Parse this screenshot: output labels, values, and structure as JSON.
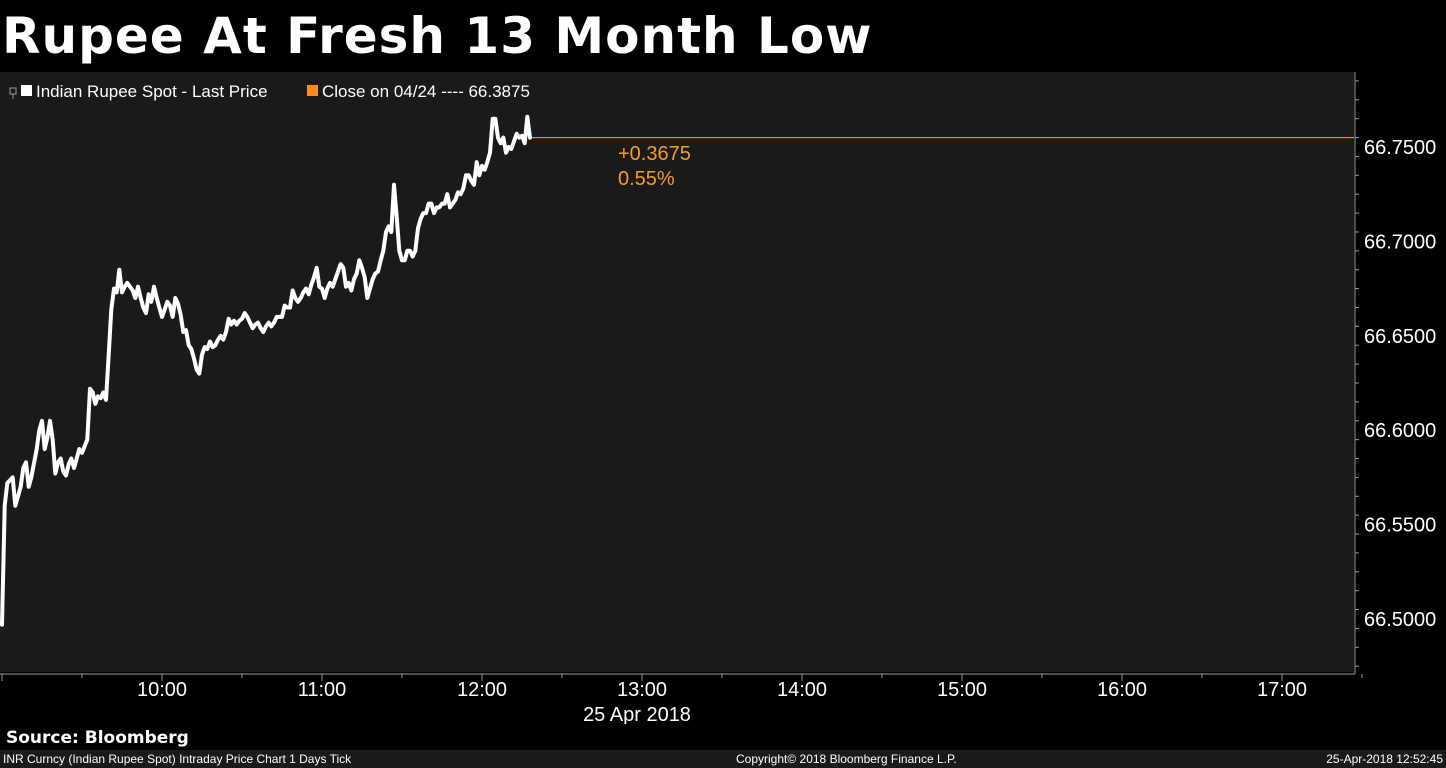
{
  "title": "Rupee At Fresh 13 Month Low",
  "legend": {
    "series_label": "Indian Rupee Spot - Last Price",
    "close_label": "Close on 04/24 ---- 66.3875"
  },
  "change": {
    "absolute": "+0.3675",
    "percent": "0.55%"
  },
  "colors": {
    "background": "#000000",
    "plot_background": "#1a1a1a",
    "series": "#ffffff",
    "close_line": "#ff8c1a",
    "change_text": "#f39c2e"
  },
  "chart_data": {
    "type": "line",
    "ylim": [
      66.475,
      66.785
    ],
    "y_ticks": [
      66.5,
      66.55,
      66.6,
      66.65,
      66.7,
      66.75
    ],
    "y_tick_labels": [
      "66.5000",
      "66.5500",
      "66.6000",
      "66.6500",
      "66.7000",
      "66.7500"
    ],
    "xlim": [
      "09:00",
      "17:30"
    ],
    "x_ticks": [
      "10:00",
      "11:00",
      "12:00",
      "13:00",
      "14:00",
      "15:00",
      "16:00",
      "17:00"
    ],
    "x_date_label": "25 Apr 2018",
    "reference_line_value": 66.755,
    "series": [
      {
        "name": "Indian Rupee Spot - Last Price",
        "points": [
          [
            "09:00",
            66.497
          ],
          [
            "09:01",
            66.56
          ],
          [
            "09:02",
            66.572
          ],
          [
            "09:04",
            66.575
          ],
          [
            "09:05",
            66.56
          ],
          [
            "09:07",
            66.57
          ],
          [
            "09:08",
            66.58
          ],
          [
            "09:09",
            66.583
          ],
          [
            "09:10",
            66.57
          ],
          [
            "09:11",
            66.575
          ],
          [
            "09:13",
            66.59
          ],
          [
            "09:14",
            66.6
          ],
          [
            "09:15",
            66.605
          ],
          [
            "09:16",
            66.59
          ],
          [
            "09:17",
            66.596
          ],
          [
            "09:18",
            66.605
          ],
          [
            "09:19",
            66.595
          ],
          [
            "09:20",
            66.577
          ],
          [
            "09:21",
            66.583
          ],
          [
            "09:22",
            66.585
          ],
          [
            "09:23",
            66.578
          ],
          [
            "09:24",
            66.576
          ],
          [
            "09:25",
            66.582
          ],
          [
            "09:26",
            66.585
          ],
          [
            "09:27",
            66.58
          ],
          [
            "09:28",
            66.585
          ],
          [
            "09:29",
            66.59
          ],
          [
            "09:30",
            66.588
          ],
          [
            "09:32",
            66.595
          ],
          [
            "09:33",
            66.622
          ],
          [
            "09:34",
            66.62
          ],
          [
            "09:35",
            66.614
          ],
          [
            "09:36",
            66.618
          ],
          [
            "09:37",
            66.617
          ],
          [
            "09:38",
            66.62
          ],
          [
            "09:39",
            66.616
          ],
          [
            "09:40",
            66.64
          ],
          [
            "09:41",
            66.664
          ],
          [
            "09:42",
            66.675
          ],
          [
            "09:43",
            66.673
          ],
          [
            "09:44",
            66.685
          ],
          [
            "09:45",
            66.673
          ],
          [
            "09:46",
            66.676
          ],
          [
            "09:47",
            66.678
          ],
          [
            "09:49",
            66.674
          ],
          [
            "09:50",
            66.67
          ],
          [
            "09:51",
            66.676
          ],
          [
            "09:52",
            66.67
          ],
          [
            "09:53",
            66.665
          ],
          [
            "09:54",
            66.662
          ],
          [
            "09:55",
            66.672
          ],
          [
            "09:56",
            66.668
          ],
          [
            "09:57",
            66.676
          ],
          [
            "09:58",
            66.67
          ],
          [
            "09:59",
            66.665
          ],
          [
            "10:00",
            66.66
          ],
          [
            "10:01",
            66.664
          ],
          [
            "10:02",
            66.668
          ],
          [
            "10:03",
            66.666
          ],
          [
            "10:04",
            66.66
          ],
          [
            "10:05",
            66.67
          ],
          [
            "10:06",
            66.667
          ],
          [
            "10:07",
            66.661
          ],
          [
            "10:08",
            66.652
          ],
          [
            "10:09",
            66.653
          ],
          [
            "10:10",
            66.645
          ],
          [
            "10:11",
            66.643
          ],
          [
            "10:12",
            66.638
          ],
          [
            "10:13",
            66.632
          ],
          [
            "10:14",
            66.63
          ],
          [
            "10:15",
            66.64
          ],
          [
            "10:16",
            66.644
          ],
          [
            "10:17",
            66.643
          ],
          [
            "10:18",
            66.647
          ],
          [
            "10:19",
            66.644
          ],
          [
            "10:20",
            66.645
          ],
          [
            "10:21",
            66.648
          ],
          [
            "10:22",
            66.65
          ],
          [
            "10:23",
            66.648
          ],
          [
            "10:24",
            66.652
          ],
          [
            "10:25",
            66.659
          ],
          [
            "10:26",
            66.656
          ],
          [
            "10:27",
            66.658
          ],
          [
            "10:28",
            66.656
          ],
          [
            "10:29",
            66.658
          ],
          [
            "10:30",
            66.659
          ],
          [
            "10:31",
            66.662
          ],
          [
            "10:32",
            66.66
          ],
          [
            "10:33",
            66.657
          ],
          [
            "10:34",
            66.654
          ],
          [
            "10:35",
            66.656
          ],
          [
            "10:36",
            66.657
          ],
          [
            "10:37",
            66.654
          ],
          [
            "10:38",
            66.652
          ],
          [
            "10:39",
            66.655
          ],
          [
            "10:40",
            66.657
          ],
          [
            "10:41",
            66.655
          ],
          [
            "10:42",
            66.657
          ],
          [
            "10:43",
            66.66
          ],
          [
            "10:44",
            66.66
          ],
          [
            "10:45",
            66.66
          ],
          [
            "10:46",
            66.666
          ],
          [
            "10:47",
            66.665
          ],
          [
            "10:48",
            66.665
          ],
          [
            "10:49",
            66.674
          ],
          [
            "10:50",
            66.67
          ],
          [
            "10:51",
            66.668
          ],
          [
            "10:52",
            66.67
          ],
          [
            "10:53",
            66.673
          ],
          [
            "10:54",
            66.675
          ],
          [
            "10:55",
            66.672
          ],
          [
            "10:56",
            66.677
          ],
          [
            "10:57",
            66.681
          ],
          [
            "10:58",
            66.686
          ],
          [
            "10:59",
            66.676
          ],
          [
            "11:00",
            66.675
          ],
          [
            "11:01",
            66.67
          ],
          [
            "11:02",
            66.675
          ],
          [
            "11:03",
            66.678
          ],
          [
            "11:04",
            66.676
          ],
          [
            "11:05",
            66.68
          ],
          [
            "11:06",
            66.684
          ],
          [
            "11:07",
            66.688
          ],
          [
            "11:08",
            66.686
          ],
          [
            "11:09",
            66.676
          ],
          [
            "11:10",
            66.678
          ],
          [
            "11:11",
            66.674
          ],
          [
            "11:12",
            66.68
          ],
          [
            "11:13",
            66.683
          ],
          [
            "11:14",
            66.69
          ],
          [
            "11:15",
            66.686
          ],
          [
            "11:16",
            66.681
          ],
          [
            "11:17",
            66.67
          ],
          [
            "11:18",
            66.675
          ],
          [
            "11:19",
            66.68
          ],
          [
            "11:20",
            66.683
          ],
          [
            "11:21",
            66.684
          ],
          [
            "11:22",
            66.69
          ],
          [
            "11:23",
            66.695
          ],
          [
            "11:24",
            66.705
          ],
          [
            "11:25",
            66.708
          ],
          [
            "11:26",
            66.705
          ],
          [
            "11:27",
            66.73
          ],
          [
            "11:28",
            66.713
          ],
          [
            "11:29",
            66.695
          ],
          [
            "11:30",
            66.69
          ],
          [
            "11:31",
            66.69
          ],
          [
            "11:32",
            66.695
          ],
          [
            "11:33",
            66.695
          ],
          [
            "11:34",
            66.692
          ],
          [
            "11:35",
            66.695
          ],
          [
            "11:36",
            66.707
          ],
          [
            "11:37",
            66.712
          ],
          [
            "11:38",
            66.715
          ],
          [
            "11:39",
            66.715
          ],
          [
            "11:40",
            66.72
          ],
          [
            "11:41",
            66.72
          ],
          [
            "11:42",
            66.715
          ],
          [
            "11:43",
            66.718
          ],
          [
            "11:44",
            66.718
          ],
          [
            "11:45",
            66.72
          ],
          [
            "11:46",
            66.72
          ],
          [
            "11:47",
            66.725
          ],
          [
            "11:48",
            66.718
          ],
          [
            "11:49",
            66.72
          ],
          [
            "11:50",
            66.722
          ],
          [
            "11:51",
            66.726
          ],
          [
            "11:52",
            66.725
          ],
          [
            "11:53",
            66.728
          ],
          [
            "11:54",
            66.735
          ],
          [
            "11:55",
            66.735
          ],
          [
            "11:56",
            66.732
          ],
          [
            "11:57",
            66.73
          ],
          [
            "11:58",
            66.742
          ],
          [
            "11:59",
            66.735
          ],
          [
            "12:00",
            66.74
          ],
          [
            "12:01",
            66.738
          ],
          [
            "12:02",
            66.742
          ],
          [
            "12:03",
            66.747
          ],
          [
            "12:04",
            66.765
          ],
          [
            "12:05",
            66.765
          ],
          [
            "12:06",
            66.755
          ],
          [
            "12:07",
            66.752
          ],
          [
            "12:08",
            66.755
          ],
          [
            "12:09",
            66.747
          ],
          [
            "12:10",
            66.75
          ],
          [
            "12:11",
            66.749
          ],
          [
            "12:12",
            66.753
          ],
          [
            "12:13",
            66.757
          ],
          [
            "12:14",
            66.755
          ],
          [
            "12:15",
            66.756
          ],
          [
            "12:16",
            66.752
          ],
          [
            "12:17",
            66.766
          ],
          [
            "12:18",
            66.755
          ]
        ]
      }
    ]
  },
  "source": "Source: Bloomberg",
  "footer": {
    "left": "INR Curncy (Indian Rupee Spot) Intraday Price Chart 1 Days  Tick",
    "center": "Copyright© 2018 Bloomberg Finance L.P.",
    "right": "25-Apr-2018 12:52:45"
  }
}
